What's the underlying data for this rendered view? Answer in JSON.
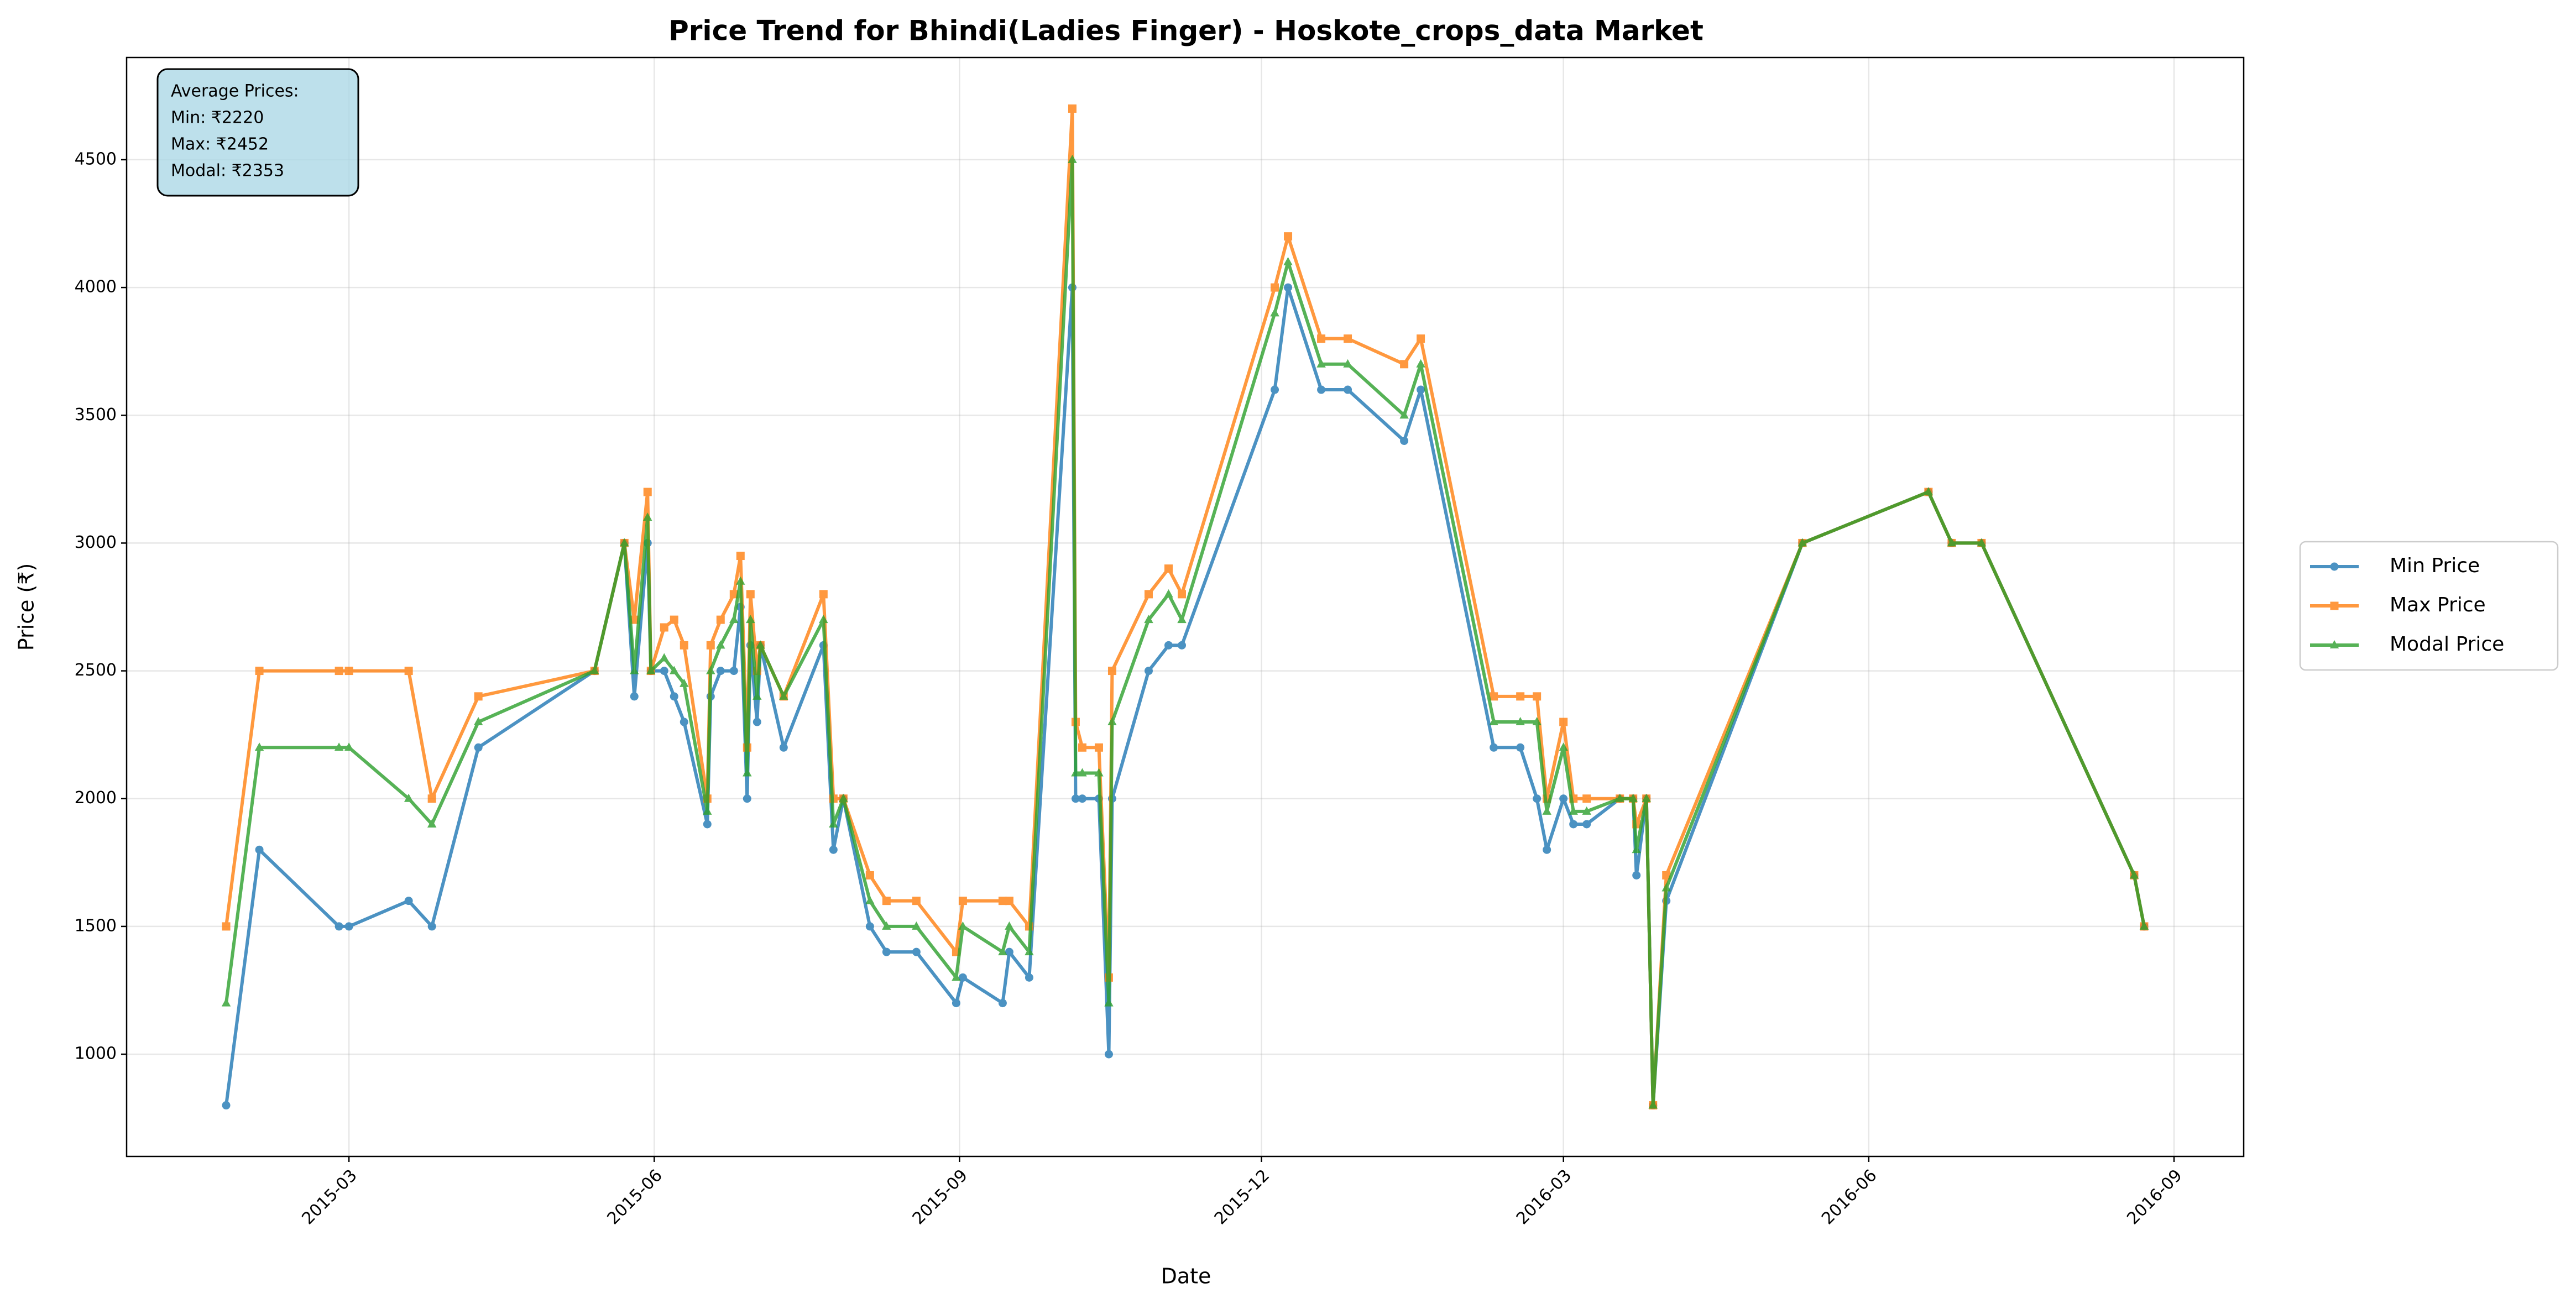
{
  "chart_data": {
    "type": "line",
    "title": "Price Trend for Bhindi(Ladies Finger) - Hoskote_crops_data Market",
    "x_label": "Date",
    "y_label": "Price (₹)",
    "annotation": [
      "Average Prices:",
      "Min: ₹2220",
      "Max: ₹2452",
      "Modal: ₹2353"
    ],
    "x": [
      "2015-01-23",
      "2015-02-02",
      "2015-02-26",
      "2015-03-01",
      "2015-03-19",
      "2015-03-26",
      "2015-04-09",
      "2015-05-14",
      "2015-05-23",
      "2015-05-26",
      "2015-05-30",
      "2015-05-31",
      "2015-06-04",
      "2015-06-07",
      "2015-06-10",
      "2015-06-17",
      "2015-06-18",
      "2015-06-21",
      "2015-06-25",
      "2015-06-27",
      "2015-06-29",
      "2015-06-30",
      "2015-07-02",
      "2015-07-03",
      "2015-07-10",
      "2015-07-22",
      "2015-07-25",
      "2015-07-28",
      "2015-08-05",
      "2015-08-10",
      "2015-08-19",
      "2015-08-31",
      "2015-09-02",
      "2015-09-14",
      "2015-09-16",
      "2015-09-22",
      "2015-10-05",
      "2015-10-06",
      "2015-10-08",
      "2015-10-13",
      "2015-10-16",
      "2015-10-17",
      "2015-10-28",
      "2015-11-03",
      "2015-11-07",
      "2015-12-05",
      "2015-12-09",
      "2015-12-19",
      "2015-12-27",
      "2016-01-13",
      "2016-01-18",
      "2016-02-09",
      "2016-02-17",
      "2016-02-22",
      "2016-02-25",
      "2016-03-01",
      "2016-03-04",
      "2016-03-08",
      "2016-03-18",
      "2016-03-22",
      "2016-03-23",
      "2016-03-26",
      "2016-03-28",
      "2016-04-01",
      "2016-05-12",
      "2016-06-19",
      "2016-06-26",
      "2016-07-05",
      "2016-08-20",
      "2016-08-23"
    ],
    "series": [
      {
        "name": "Min Price",
        "color": "#1f77b4",
        "marker": "circle",
        "values": [
          800,
          1800,
          1500,
          1500,
          1600,
          1500,
          2200,
          2500,
          3000,
          2400,
          3000,
          2500,
          2500,
          2400,
          2300,
          1900,
          2400,
          2500,
          2500,
          2750,
          2000,
          2600,
          2300,
          2600,
          2200,
          2600,
          1800,
          2000,
          1500,
          1400,
          1400,
          1200,
          1300,
          1200,
          1400,
          1300,
          4000,
          2000,
          2000,
          2000,
          1000,
          2000,
          2500,
          2600,
          2600,
          3600,
          4000,
          3600,
          3600,
          3400,
          3600,
          2200,
          2200,
          2000,
          1800,
          2000,
          1900,
          1900,
          2000,
          2000,
          1700,
          2000,
          800,
          1600,
          3000,
          3200,
          3000,
          3000,
          1700,
          1500
        ]
      },
      {
        "name": "Max Price",
        "color": "#ff7f0e",
        "marker": "square",
        "values": [
          1500,
          2500,
          2500,
          2500,
          2500,
          2000,
          2400,
          2500,
          3000,
          2700,
          3200,
          2500,
          2670,
          2700,
          2600,
          2000,
          2600,
          2700,
          2800,
          2950,
          2200,
          2800,
          2500,
          2600,
          2400,
          2800,
          2000,
          2000,
          1700,
          1600,
          1600,
          1400,
          1600,
          1600,
          1600,
          1500,
          4700,
          2300,
          2200,
          2200,
          1300,
          2500,
          2800,
          2900,
          2800,
          4000,
          4200,
          3800,
          3800,
          3700,
          3800,
          2400,
          2400,
          2400,
          2000,
          2300,
          2000,
          2000,
          2000,
          2000,
          1900,
          2000,
          800,
          1700,
          3000,
          3200,
          3000,
          3000,
          1700,
          1500
        ]
      },
      {
        "name": "Modal Price",
        "color": "#2ca02c",
        "marker": "triangle",
        "values": [
          1200,
          2200,
          2200,
          2200,
          2000,
          1900,
          2300,
          2500,
          3000,
          2500,
          3100,
          2500,
          2550,
          2500,
          2450,
          1950,
          2500,
          2600,
          2700,
          2850,
          2100,
          2700,
          2400,
          2600,
          2400,
          2700,
          1900,
          2000,
          1600,
          1500,
          1500,
          1300,
          1500,
          1400,
          1500,
          1400,
          4500,
          2100,
          2100,
          2100,
          1200,
          2300,
          2700,
          2800,
          2700,
          3900,
          4100,
          3700,
          3700,
          3500,
          3700,
          2300,
          2300,
          2300,
          1950,
          2200,
          1950,
          1950,
          2000,
          2000,
          1800,
          2000,
          800,
          1650,
          3000,
          3200,
          3000,
          3000,
          1700,
          1500
        ]
      }
    ],
    "xlim": [
      "2014-12-24",
      "2016-09-22"
    ],
    "xticks": [
      {
        "value": "2015-03-01",
        "label": "2015-03"
      },
      {
        "value": "2015-06-01",
        "label": "2015-06"
      },
      {
        "value": "2015-09-01",
        "label": "2015-09"
      },
      {
        "value": "2015-12-01",
        "label": "2015-12"
      },
      {
        "value": "2016-03-01",
        "label": "2016-03"
      },
      {
        "value": "2016-06-01",
        "label": "2016-06"
      },
      {
        "value": "2016-09-01",
        "label": "2016-09"
      }
    ],
    "ylim": [
      600,
      4900
    ],
    "yticks": [
      1000,
      1500,
      2000,
      2500,
      3000,
      3500,
      4000,
      4500
    ],
    "grid": true,
    "legend": "outside right"
  }
}
